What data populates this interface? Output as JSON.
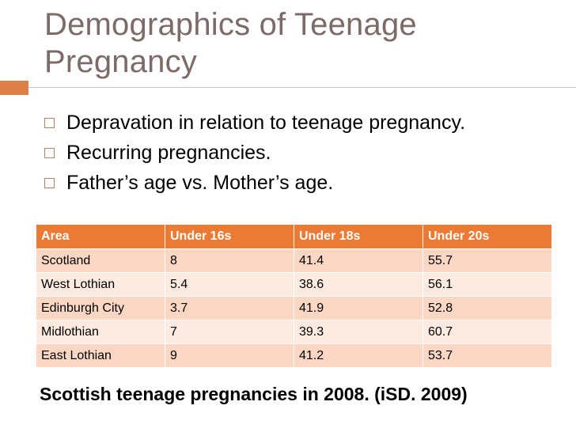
{
  "slide": {
    "title": "Demographics of Teenage Pregnancy",
    "accent_color": "#dd8047",
    "bullets": [
      "Depravation in relation to teenage pregnancy.",
      "Recurring pregnancies.",
      "Father’s age vs. Mother’s age."
    ],
    "bullet_icon": "hollow-square-icon"
  },
  "table": {
    "header_color": "#ea7a34",
    "columns": [
      "Area",
      "Under 16s",
      "Under 18s",
      "Under 20s"
    ],
    "rows": [
      [
        "Scotland",
        "8",
        "41.4",
        "55.7"
      ],
      [
        "West Lothian",
        "5.4",
        "38.6",
        "56.1"
      ],
      [
        "Edinburgh City",
        "3.7",
        "41.9",
        "52.8"
      ],
      [
        "Midlothian",
        "7",
        "39.3",
        "60.7"
      ],
      [
        "East Lothian",
        "9",
        "41.2",
        "53.7"
      ]
    ]
  },
  "caption": "Scottish teenage pregnancies in 2008. (iSD. 2009)"
}
